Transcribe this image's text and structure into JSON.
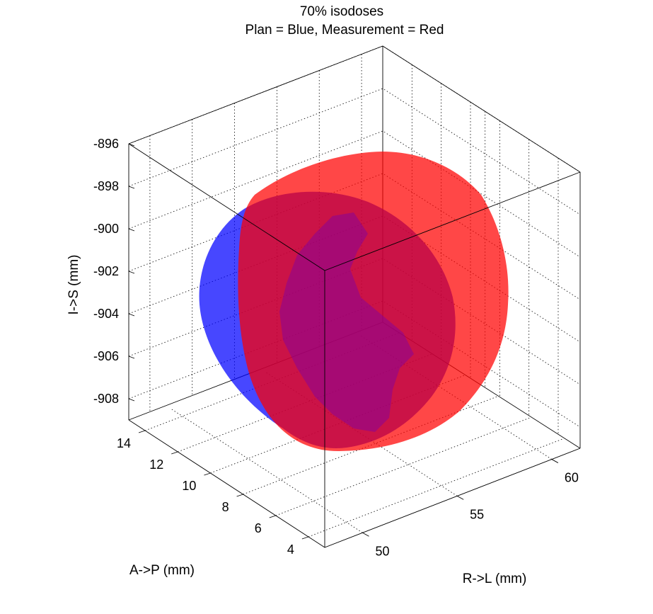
{
  "chart_data": {
    "type": "surface3d",
    "title": "70% isodoses",
    "subtitle": "Plan = Blue, Measurement = Red",
    "xlabel": "R->L (mm)",
    "ylabel": "A->P (mm)",
    "zlabel": "I->S (mm)",
    "x_ticks": [
      50,
      55,
      60
    ],
    "y_ticks": [
      4,
      6,
      8,
      10,
      12,
      14
    ],
    "z_ticks": [
      -908,
      -906,
      -904,
      -902,
      -900,
      -898,
      -896
    ],
    "x_tick_labels": [
      "50",
      "55",
      "60"
    ],
    "y_tick_labels": [
      "4",
      "6",
      "8",
      "10",
      "12",
      "14"
    ],
    "z_tick_labels": [
      "-908",
      "-906",
      "-904",
      "-902",
      "-900",
      "-898",
      "-896"
    ],
    "grid": true,
    "series": [
      {
        "color": "#0000ff",
        "opacity": 0.72
      },
      {
        "color": "#ff0000",
        "opacity": 0.72
      }
    ]
  }
}
